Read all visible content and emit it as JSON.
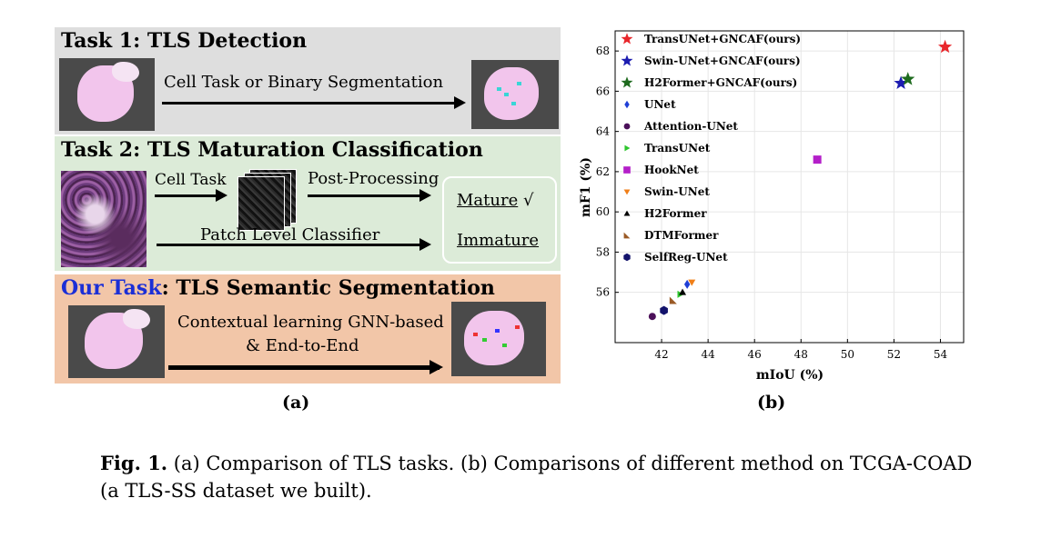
{
  "panel_a": {
    "task1": {
      "title": "Task 1: TLS Detection",
      "arrow_label": "Cell Task or Binary Segmentation"
    },
    "task2": {
      "title": "Task 2: TLS Maturation Classification",
      "cell_task_label": "Cell Task",
      "post_processing_label": "Post-Processing",
      "patch_level_label": "Patch Level Classifier",
      "mature_label": "Mature",
      "mature_mark": "√",
      "immature_label": "Immature"
    },
    "task3": {
      "title_highlight": "Our Task",
      "title_rest": ": TLS Semantic Segmentation",
      "line1": "Contextual learning GNN-based",
      "line2": "& End-to-End"
    },
    "caption": "(a)"
  },
  "panel_b": {
    "caption": "(b)"
  },
  "colors": {
    "task1_bg": "#dedede",
    "task2_bg": "#dcebd8",
    "task3_bg": "#f2c6a8",
    "our_task_blue": "#1b2fd6"
  },
  "chart_data": {
    "type": "scatter",
    "xlabel": "mIoU (%)",
    "ylabel": "mF1 (%)",
    "xlim": [
      40,
      55
    ],
    "ylim": [
      53.5,
      69
    ],
    "xticks": [
      42,
      44,
      46,
      48,
      50,
      52,
      54
    ],
    "yticks": [
      56,
      58,
      60,
      62,
      64,
      66,
      68
    ],
    "grid": true,
    "legend_position": "top-left",
    "series": [
      {
        "name": "TransUNet+GNCAF(ours)",
        "marker": "star",
        "color": "#e8262b",
        "x": 54.2,
        "y": 68.2
      },
      {
        "name": "Swin-UNet+GNCAF(ours)",
        "marker": "star",
        "color": "#1c1cb0",
        "x": 52.3,
        "y": 66.4
      },
      {
        "name": "H2Former+GNCAF(ours)",
        "marker": "star",
        "color": "#1e6b1e",
        "x": 52.6,
        "y": 66.6
      },
      {
        "name": "UNet",
        "marker": "diamond",
        "color": "#1f3fd6",
        "x": 43.1,
        "y": 56.4
      },
      {
        "name": "Attention-UNet",
        "marker": "circle",
        "color": "#4b1059",
        "x": 41.6,
        "y": 54.8
      },
      {
        "name": "TransUNet",
        "marker": "triangle-right",
        "color": "#2ec62e",
        "x": 42.8,
        "y": 55.9
      },
      {
        "name": "HookNet",
        "marker": "square",
        "color": "#b41fc9",
        "x": 48.7,
        "y": 62.6
      },
      {
        "name": "Swin-UNet",
        "marker": "triangle-down",
        "color": "#f07f18",
        "x": 43.3,
        "y": 56.5
      },
      {
        "name": "H2Former",
        "marker": "triangle-up",
        "color": "#000000",
        "x": 42.9,
        "y": 56.0
      },
      {
        "name": "DTMFormer",
        "marker": "triangle-bl",
        "color": "#9a5a25",
        "x": 42.5,
        "y": 55.6
      },
      {
        "name": "SelfReg-UNet",
        "marker": "hexagon",
        "color": "#12126b",
        "x": 42.1,
        "y": 55.1
      }
    ]
  },
  "figure_caption": {
    "label": "Fig. 1.",
    "text": " (a) Comparison of TLS tasks. (b) Comparisons of different method on TCGA-COAD (a TLS-SS dataset we built)."
  }
}
